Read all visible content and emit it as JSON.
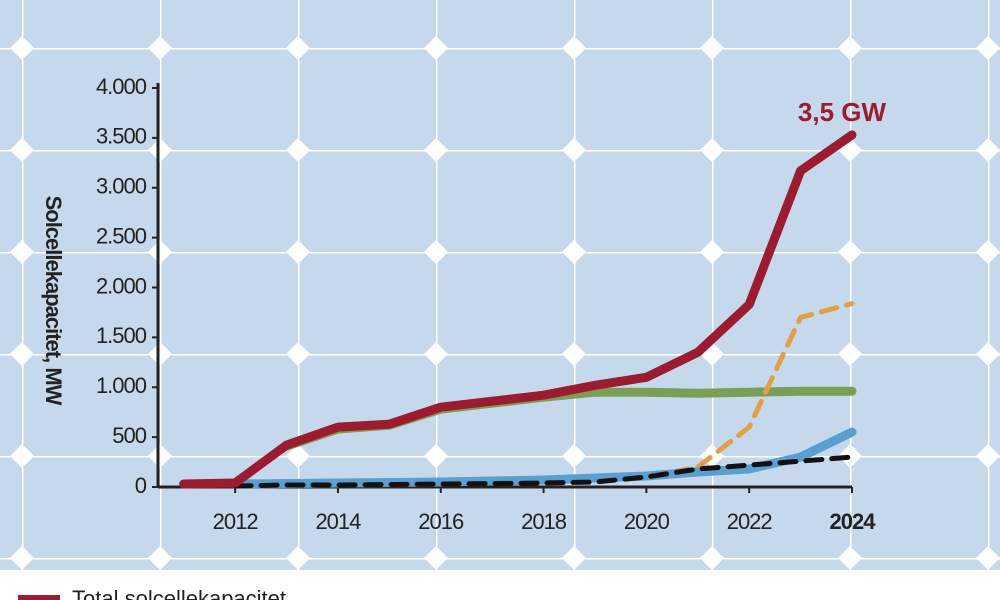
{
  "chart_data": {
    "type": "line",
    "y_label": "Solcellekapacitet, MW",
    "annotation": "3,5 GW",
    "xlim": [
      2010.5,
      2024
    ],
    "xticks": [
      2012,
      2014,
      2016,
      2018,
      2020,
      2022,
      2024
    ],
    "ylim": [
      0,
      4000
    ],
    "yticks": [
      0,
      500,
      {
        "value": 1000,
        "label": "1.000"
      },
      {
        "value": 1500,
        "label": "1.500"
      },
      {
        "value": 2000,
        "label": "2.000"
      },
      {
        "value": 2500,
        "label": "2.500"
      },
      {
        "value": 3000,
        "label": "3.000"
      },
      {
        "value": 3500,
        "label": "3.500"
      },
      {
        "value": 4000,
        "label": "4.000"
      }
    ],
    "series": [
      {
        "color": "#7a9e55",
        "dashed": false,
        "x": [
          2013,
          2014,
          2015,
          2016,
          2017,
          2018,
          2019,
          2020,
          2021,
          2022,
          2023,
          2024
        ],
        "values": [
          410,
          580,
          620,
          780,
          840,
          900,
          950,
          950,
          940,
          950,
          960,
          960
        ]
      },
      {
        "color": "#e0a04a",
        "dashed": true,
        "x": [
          2020,
          2021,
          2022,
          2023,
          2024
        ],
        "values": [
          100,
          200,
          600,
          1700,
          1840
        ]
      },
      {
        "color": "#5b9fd0",
        "dashed": false,
        "x": [
          2012,
          2014,
          2016,
          2018,
          2019,
          2020,
          2021,
          2022,
          2023,
          2024
        ],
        "values": [
          30,
          40,
          50,
          70,
          90,
          110,
          150,
          180,
          300,
          550
        ]
      },
      {
        "color": "#111111",
        "dashed": true,
        "x": [
          2012,
          2013,
          2014,
          2015,
          2016,
          2017,
          2018,
          2019,
          2020,
          2021,
          2022,
          2023,
          2024
        ],
        "values": [
          10,
          20,
          20,
          25,
          30,
          35,
          40,
          50,
          100,
          180,
          220,
          260,
          300
        ]
      },
      {
        "name": "Total solcellekapacitet",
        "color": "#9b1b30",
        "dashed": false,
        "x": [
          2011,
          2012,
          2013,
          2014,
          2015,
          2016,
          2017,
          2018,
          2019,
          2020,
          2021,
          2022,
          2023,
          2024
        ],
        "values": [
          30,
          40,
          420,
          600,
          630,
          800,
          860,
          920,
          1020,
          1100,
          1350,
          1830,
          3170,
          3530
        ]
      }
    ]
  }
}
